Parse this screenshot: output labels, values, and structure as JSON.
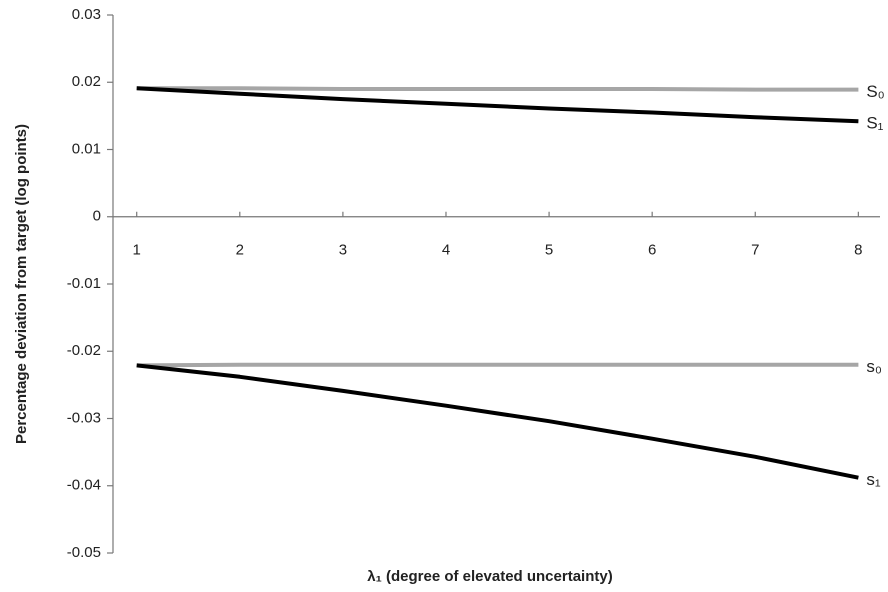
{
  "chart_data": {
    "type": "line",
    "x_label": "λ₁ (degree of elevated uncertainty)",
    "y_label": "Percentage deviation from target (log points)",
    "x": [
      1,
      2,
      3,
      4,
      5,
      6,
      7,
      8
    ],
    "xlim": [
      0.77,
      8.21
    ],
    "xticks": [
      1,
      2,
      3,
      4,
      5,
      6,
      7,
      8
    ],
    "ylim": [
      -0.05,
      0.03
    ],
    "yticks": [
      -0.05,
      -0.04,
      -0.03,
      -0.02,
      -0.01,
      0,
      0.01,
      0.02,
      0.03
    ],
    "series": [
      {
        "name": "S₀",
        "color": "#a6a6a6",
        "values": [
          0.0191,
          0.0191,
          0.019,
          0.019,
          0.019,
          0.019,
          0.0189,
          0.0189
        ]
      },
      {
        "name": "S₁",
        "color": "#000000",
        "values": [
          0.0191,
          0.0183,
          0.0175,
          0.0168,
          0.0161,
          0.0155,
          0.0148,
          0.0142
        ]
      },
      {
        "name": "s₀",
        "color": "#a6a6a6",
        "values": [
          -0.0221,
          -0.022,
          -0.022,
          -0.022,
          -0.022,
          -0.022,
          -0.022,
          -0.022
        ]
      },
      {
        "name": "s₁",
        "color": "#000000",
        "values": [
          -0.0221,
          -0.0238,
          -0.0259,
          -0.0281,
          -0.0304,
          -0.033,
          -0.0357,
          -0.0388
        ]
      }
    ]
  }
}
